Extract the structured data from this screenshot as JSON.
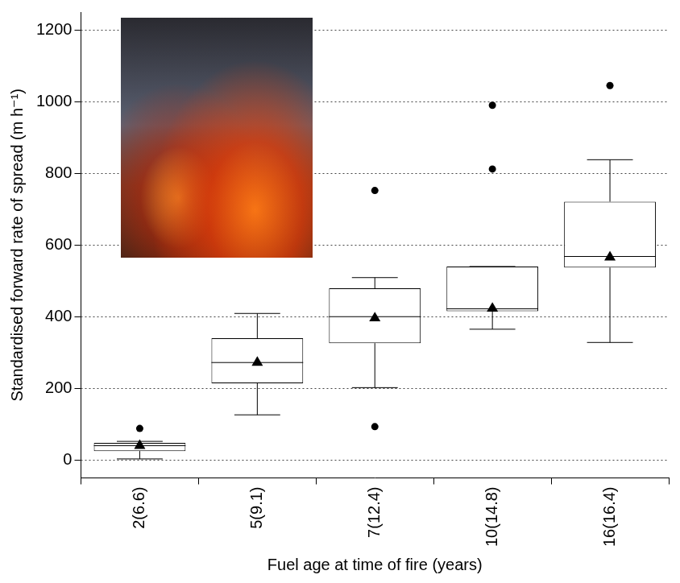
{
  "chart_data": {
    "type": "boxplot",
    "x_label": "Fuel age at time of fire (years)",
    "y_label": "Standardised forward rate of spread (m h⁻¹)",
    "categories": [
      "2(6.6)",
      "5(9.1)",
      "7(12.4)",
      "10(14.8)",
      "16(16.4)"
    ],
    "min": [
      3,
      126,
      202,
      365,
      328
    ],
    "q1": [
      25,
      214,
      326,
      415,
      537
    ],
    "median": [
      40,
      272,
      400,
      422,
      568
    ],
    "q3": [
      48,
      340,
      479,
      540,
      721
    ],
    "max": [
      52,
      409,
      509,
      540,
      838
    ],
    "mean": [
      42,
      274,
      398,
      425,
      568
    ],
    "outliers": [
      [
        88
      ],
      [],
      [
        752,
        93
      ],
      [
        812,
        990
      ],
      [
        1045
      ]
    ],
    "color": "#000000",
    "ylim": [
      -50,
      1250
    ],
    "yticks": [
      0,
      200,
      400,
      600,
      800,
      1000,
      1200
    ],
    "grid": true
  }
}
